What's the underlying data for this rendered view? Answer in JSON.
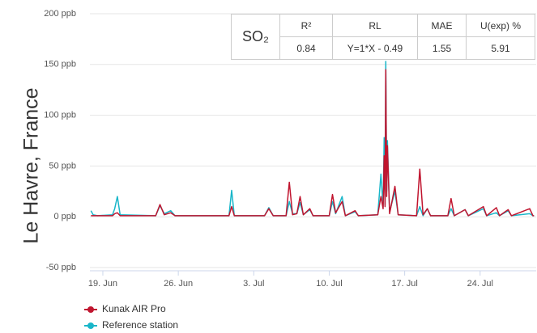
{
  "chart_data": {
    "type": "line",
    "y_axis_label": "Le Havre, France",
    "x": [
      17.9,
      18.1,
      18.5,
      19.9,
      20.1,
      20.35,
      20.6,
      23.9,
      24.3,
      24.7,
      25.3,
      25.7,
      30.7,
      30.95,
      31.2,
      34.0,
      34.4,
      34.8,
      36.0,
      36.3,
      36.6,
      37.0,
      37.3,
      37.6,
      38.2,
      38.5,
      40.0,
      40.3,
      40.6,
      41.2,
      41.5,
      42.4,
      42.7,
      44.5,
      44.8,
      45.0,
      45.1,
      45.18,
      45.25,
      45.33,
      45.4,
      45.6,
      46.1,
      46.4,
      48.1,
      48.4,
      48.7,
      49.1,
      49.4,
      51.0,
      51.3,
      51.6,
      52.6,
      52.9,
      54.3,
      54.6,
      55.5,
      55.8,
      56.6,
      56.9,
      58.6,
      58.9,
      59.0
    ],
    "series": [
      {
        "name": "Kunak AIR Pro",
        "color": "#c0152f",
        "values": [
          1,
          1,
          1,
          1,
          3,
          4,
          1,
          1,
          12,
          2,
          4,
          1,
          1,
          10,
          1,
          1,
          8,
          1,
          1,
          34,
          2,
          3,
          20,
          2,
          8,
          1,
          1,
          22,
          4,
          15,
          1,
          6,
          1,
          2,
          20,
          8,
          60,
          10,
          145,
          20,
          70,
          3,
          30,
          2,
          1,
          47,
          2,
          8,
          1,
          1,
          18,
          1,
          7,
          1,
          10,
          1,
          9,
          1,
          7,
          1,
          8,
          1,
          1
        ]
      },
      {
        "name": "Reference station",
        "color": "#19b6c9",
        "values": [
          6,
          2,
          1,
          2,
          8,
          20,
          2,
          1,
          11,
          3,
          6,
          1,
          1,
          26,
          1,
          1,
          9,
          1,
          1,
          15,
          3,
          3,
          14,
          2,
          7,
          1,
          1,
          15,
          3,
          20,
          1,
          5,
          1,
          2,
          42,
          10,
          78,
          12,
          153,
          25,
          75,
          5,
          25,
          2,
          1,
          10,
          1,
          8,
          1,
          1,
          8,
          1,
          7,
          1,
          8,
          1,
          4,
          1,
          6,
          1,
          3,
          1,
          1
        ]
      }
    ],
    "xlim": [
      17.8,
      59.2
    ],
    "xticks": [
      {
        "value": 19,
        "label": "19. Jun"
      },
      {
        "value": 26,
        "label": "26. Jun"
      },
      {
        "value": 33,
        "label": "3. Jul"
      },
      {
        "value": 40,
        "label": "10. Jul"
      },
      {
        "value": 47,
        "label": "17. Jul"
      },
      {
        "value": 54,
        "label": "24. Jul"
      }
    ],
    "ylim": [
      -50,
      200
    ],
    "yticks": [
      {
        "value": -50,
        "label": "-50 ppb"
      },
      {
        "value": 0,
        "label": "0 ppb"
      },
      {
        "value": 50,
        "label": "50 ppb"
      },
      {
        "value": 100,
        "label": "100 ppb"
      },
      {
        "value": 150,
        "label": "150 ppb"
      },
      {
        "value": 200,
        "label": "200 ppb"
      }
    ],
    "grid": true
  },
  "table": {
    "pollutant": "SO₂",
    "header": [
      "R²",
      "RL",
      "MAE",
      "U(exp) %"
    ],
    "row": [
      "0.84",
      "Y=1*X - 0.49",
      "1.55",
      "5.91"
    ]
  }
}
